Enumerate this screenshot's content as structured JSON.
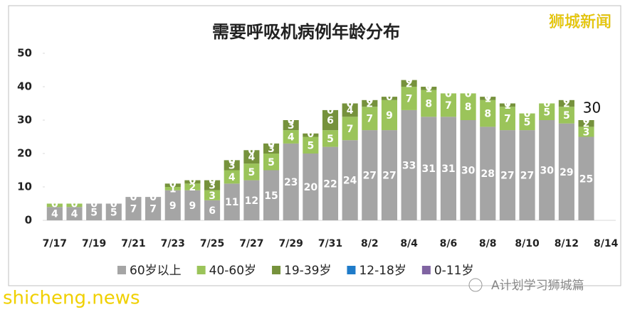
{
  "chart_data": {
    "type": "stacked_bar",
    "title": "需要呼吸机病例年龄分布",
    "categories": [
      "7/17",
      null,
      "7/19",
      null,
      "7/21",
      null,
      "7/23",
      null,
      "7/25",
      null,
      "7/27",
      null,
      "7/29",
      null,
      "7/31",
      null,
      "8/2",
      null,
      "8/4",
      null,
      "8/6",
      null,
      "8/8",
      null,
      "8/10",
      null,
      "8/12",
      null,
      "8/14"
    ],
    "series": [
      {
        "name": "60岁以上",
        "color": "#a5a5a5",
        "values": [
          4,
          4,
          5,
          5,
          7,
          7,
          9,
          9,
          6,
          11,
          12,
          15,
          23,
          20,
          22,
          24,
          27,
          27,
          33,
          31,
          31,
          30,
          28,
          27,
          27,
          30,
          29,
          25,
          null
        ]
      },
      {
        "name": "40-60岁",
        "color": "#9bc45a",
        "values": [
          1,
          1,
          0,
          0,
          0,
          0,
          1,
          2,
          3,
          4,
          5,
          5,
          4,
          5,
          5,
          7,
          7,
          9,
          7,
          8,
          7,
          8,
          8,
          7,
          5,
          5,
          5,
          3,
          null
        ],
        "value_labels": [
          null,
          null,
          null,
          null,
          null,
          null,
          "1",
          "2",
          "3",
          "4",
          "5",
          "5",
          "4",
          "5",
          "5",
          "7",
          "7",
          "9",
          "7",
          "8",
          "7",
          "8",
          "8",
          "7",
          "5",
          "5",
          "5",
          "3",
          null
        ]
      },
      {
        "name": "19-39岁",
        "color": "#76923c",
        "values": [
          0,
          0,
          0,
          0,
          0,
          0,
          1,
          1,
          3,
          3,
          4,
          3,
          3,
          1,
          6,
          4,
          2,
          1,
          2,
          1,
          0,
          0,
          1,
          1,
          0,
          0,
          2,
          2,
          null
        ],
        "value_labels": [
          null,
          null,
          null,
          null,
          null,
          null,
          null,
          null,
          "3",
          "3",
          "4",
          "3",
          "3",
          null,
          "6",
          "4",
          "2",
          null,
          "2",
          "1",
          null,
          null,
          "1",
          "1",
          null,
          null,
          "2",
          "2",
          null
        ]
      },
      {
        "name": "12-18岁",
        "color": "#1f7bc9",
        "values": [
          0,
          0,
          0,
          0,
          0,
          0,
          0,
          0,
          0,
          0,
          0,
          0,
          0,
          0,
          0,
          0,
          0,
          0,
          0,
          0,
          0,
          0,
          0,
          0,
          0,
          0,
          0,
          0,
          null
        ]
      },
      {
        "name": "0-11岁",
        "color": "#8064a2",
        "values": [
          0,
          0,
          0,
          0,
          0,
          0,
          0,
          0,
          0,
          0,
          0,
          0,
          0,
          0,
          0,
          0,
          0,
          0,
          0,
          0,
          0,
          0,
          0,
          0,
          0,
          0,
          0,
          0,
          null
        ]
      }
    ],
    "annotation": "30",
    "ylim": [
      0,
      50
    ],
    "yticks": [
      0,
      10,
      20,
      30,
      40,
      50
    ],
    "grid": false
  },
  "watermarks": {
    "top": "狮城新闻",
    "bottom_left": "shicheng.news",
    "bottom_right": "A计划学习狮城篇"
  }
}
